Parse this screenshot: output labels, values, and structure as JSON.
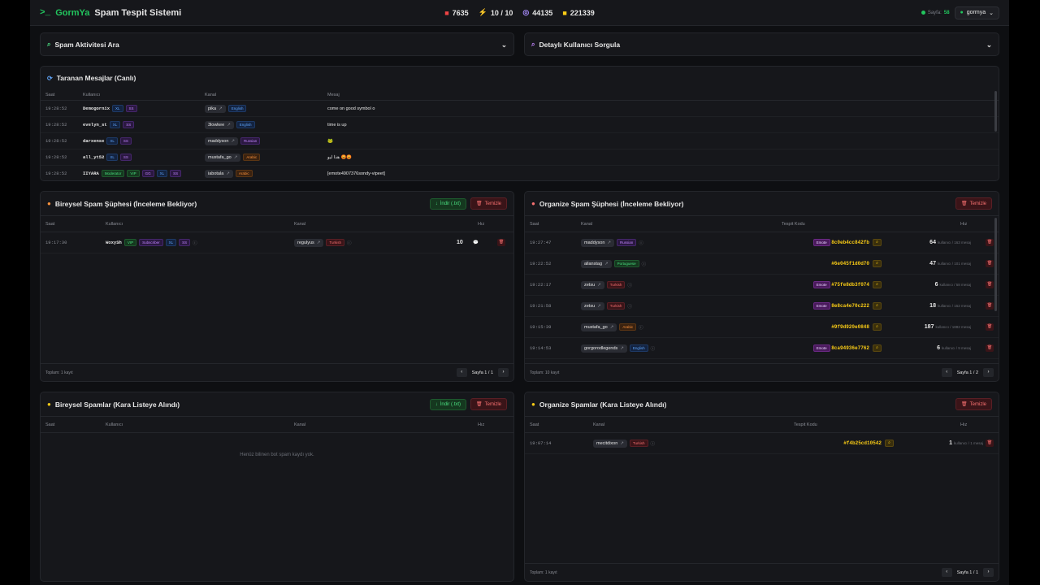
{
  "header": {
    "logo": "GormYa",
    "title": "Spam Tespit Sistemi",
    "stats": [
      {
        "icon": "video-icon",
        "value": "7635",
        "color": "#ef4444"
      },
      {
        "icon": "bolt-icon",
        "value": "10 / 10",
        "color": "#60a5fa"
      },
      {
        "icon": "rss-icon",
        "value": "44135",
        "color": "#a78bfa"
      },
      {
        "icon": "database-icon",
        "value": "221339",
        "color": "#facc15"
      }
    ],
    "online_label": "Sayfa:",
    "online_count": "58",
    "user": "gormya"
  },
  "search_panel": {
    "title": "Spam Aktivitesi Ara"
  },
  "user_query_panel": {
    "title": "Detaylı Kullanıcı Sorgula"
  },
  "live": {
    "title": "Taranan Mesajlar (Canlı)",
    "columns": [
      "Saat",
      "Kullanıcı",
      "Kanal",
      "Mesaj"
    ],
    "rows": [
      {
        "time": "19:28:52",
        "user": "Demogornix",
        "badges": [
          "XL",
          "SS"
        ],
        "channel": "pika",
        "lang": "English",
        "msg": "come on good symbol o"
      },
      {
        "time": "19:28:52",
        "user": "evelyn_st",
        "badges": [
          "XL",
          "SS"
        ],
        "channel": "3lowkee",
        "lang": "English",
        "msg": "time is up"
      },
      {
        "time": "19:28:52",
        "user": "darxense",
        "badges": [
          "XL",
          "SS"
        ],
        "channel": "maddyson",
        "lang": "Russian",
        "msg": "🐸"
      },
      {
        "time": "19:28:52",
        "user": "all_yt52",
        "badges": [
          "XL",
          "SS"
        ],
        "channel": "mustafa_go",
        "lang": "Arabic",
        "msg": "هذا ليو 😡😡"
      },
      {
        "time": "19:28:52",
        "user": "IIYARA",
        "badges": [
          "Moderator",
          "VIP",
          "GG",
          "XL",
          "SS"
        ],
        "channel": "iabotala",
        "lang": "Arabic",
        "msg": "[emote4907376sondy-vipeet]"
      }
    ]
  },
  "indiv_pending": {
    "title": "Bireysel Spam Şüphesi (İnceleme Bekliyor)",
    "download": "İndir (.txt)",
    "clear": "Temizle",
    "columns": [
      "Saat",
      "Kullanıcı",
      "Kanal",
      "Hız"
    ],
    "rows": [
      {
        "time": "19:17:30",
        "user": "WoxySh",
        "badges": [
          "VIP",
          "Subscriber",
          "XL",
          "SS"
        ],
        "channel": "regulyus",
        "lang": "Turkish",
        "speed": "10"
      }
    ],
    "footer": "Toplam: 1 kayıt",
    "page": "Sayfa 1 / 1"
  },
  "org_pending": {
    "title": "Organize Spam Şüphesi (İnceleme Bekliyor)",
    "clear": "Temizle",
    "columns": [
      "Saat",
      "Kanal",
      "Tespit Kodu",
      "Hız"
    ],
    "rows": [
      {
        "time": "19:27:47",
        "channel": "maddyson",
        "lang": "Russian",
        "emote": true,
        "code": "8c0eb4cc842fb",
        "count": "64",
        "sub": "kullanıcı / 163 mesaj"
      },
      {
        "time": "19:22:52",
        "channel": "allanstag",
        "lang": "Portuguese",
        "emote": false,
        "code": "#6e045f1d0d70",
        "count": "47",
        "sub": "kullanıcı / 101 mesaj"
      },
      {
        "time": "19:22:17",
        "channel": "zetsu",
        "lang": "Turkish",
        "emote": true,
        "code": "#75fe8db3f074",
        "count": "6",
        "sub": "kullanıcı / 58 mesaj"
      },
      {
        "time": "19:21:58",
        "channel": "zetsu",
        "lang": "Turkish",
        "emote": true,
        "code": "8e8ca4e70c222",
        "count": "18",
        "sub": "kullanıcı / 152 mesaj"
      },
      {
        "time": "19:15:39",
        "channel": "mustafa_go",
        "lang": "Arabic",
        "emote": false,
        "code": "#9f9d920e0848",
        "count": "187",
        "sub": "kullanıcı / 1882 mesaj"
      },
      {
        "time": "19:14:53",
        "channel": "gorgorodlegends",
        "lang": "English",
        "emote": true,
        "code": "8ca94936e7762",
        "count": "6",
        "sub": "kullanıcı / 9 mesaj"
      }
    ],
    "footer": "Toplam: 10 kayıt",
    "page": "Sayfa 1 / 2"
  },
  "indiv_black": {
    "title": "Bireysel Spamlar (Kara Listeye Alındı)",
    "download": "İndir (.txt)",
    "clear": "Temizle",
    "columns": [
      "Saat",
      "Kullanıcı",
      "Kanal",
      "Hız"
    ],
    "empty": "Henüz bilinen bot spam kaydı yok."
  },
  "org_black": {
    "title": "Organize Spamlar (Kara Listeye Alındı)",
    "clear": "Temizle",
    "columns": [
      "Saat",
      "Kanal",
      "Tespit Kodu",
      "Hız"
    ],
    "rows": [
      {
        "time": "19:07:14",
        "channel": "mecitdixon",
        "lang": "Turkish",
        "code": "#f4b25cd10542",
        "count": "1",
        "sub": "kullanıcı / 1 mesaj"
      }
    ],
    "footer": "Toplam: 1 kayıt",
    "page": "Sayfa 1 / 1"
  }
}
